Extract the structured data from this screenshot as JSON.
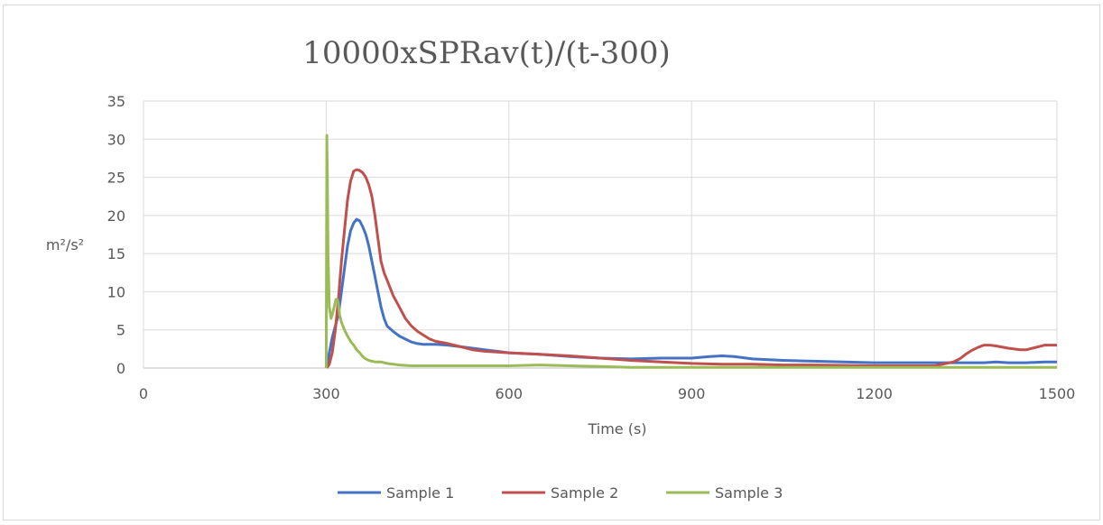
{
  "chart_data": {
    "type": "line",
    "title": "10000xSPRav(t)/(t-300)",
    "xlabel": "Time (s)",
    "ylabel": "m²/s²",
    "xlim": [
      0,
      1500
    ],
    "ylim": [
      0,
      35
    ],
    "xticks": [
      0,
      300,
      600,
      900,
      1200,
      1500
    ],
    "yticks": [
      0,
      5,
      10,
      15,
      20,
      25,
      30,
      35
    ],
    "grid": true,
    "legend": "bottom",
    "series": [
      {
        "name": "Sample 1",
        "color": "#4472c4",
        "x": [
          301,
          305,
          310,
          315,
          320,
          325,
          330,
          335,
          340,
          345,
          350,
          355,
          360,
          365,
          370,
          375,
          380,
          385,
          390,
          395,
          400,
          410,
          420,
          430,
          440,
          450,
          460,
          470,
          480,
          500,
          520,
          540,
          560,
          580,
          600,
          650,
          700,
          750,
          800,
          850,
          900,
          930,
          950,
          970,
          1000,
          1050,
          1100,
          1150,
          1200,
          1250,
          1300,
          1350,
          1380,
          1400,
          1420,
          1450,
          1480,
          1500
        ],
        "y": [
          0,
          2,
          4,
          5.5,
          7,
          10,
          13,
          16,
          18,
          19,
          19.5,
          19.3,
          18.5,
          17.5,
          16,
          14,
          12,
          10,
          8,
          6.5,
          5.5,
          4.8,
          4.2,
          3.8,
          3.4,
          3.2,
          3.1,
          3.1,
          3.1,
          3.0,
          2.8,
          2.6,
          2.4,
          2.2,
          2.0,
          1.8,
          1.5,
          1.3,
          1.2,
          1.3,
          1.3,
          1.5,
          1.6,
          1.5,
          1.2,
          1.0,
          0.9,
          0.8,
          0.7,
          0.7,
          0.7,
          0.7,
          0.7,
          0.8,
          0.7,
          0.7,
          0.8,
          0.8
        ]
      },
      {
        "name": "Sample 2",
        "color": "#c0504d",
        "x": [
          301,
          305,
          310,
          315,
          320,
          325,
          330,
          335,
          340,
          345,
          350,
          355,
          360,
          365,
          370,
          375,
          380,
          385,
          390,
          395,
          400,
          410,
          420,
          430,
          440,
          450,
          460,
          470,
          480,
          500,
          520,
          540,
          560,
          580,
          600,
          650,
          700,
          750,
          800,
          850,
          900,
          950,
          1000,
          1050,
          1100,
          1200,
          1300,
          1330,
          1340,
          1350,
          1360,
          1370,
          1380,
          1390,
          1400,
          1420,
          1440,
          1450,
          1460,
          1470,
          1480,
          1500
        ],
        "y": [
          0,
          0.5,
          2,
          5,
          9,
          14,
          18,
          22,
          24.5,
          25.8,
          26,
          25.9,
          25.6,
          25,
          24,
          22.5,
          20,
          17,
          14,
          12.5,
          11.5,
          9.5,
          8,
          6.5,
          5.5,
          4.8,
          4.3,
          3.8,
          3.5,
          3.2,
          2.8,
          2.4,
          2.2,
          2.1,
          2.0,
          1.8,
          1.6,
          1.3,
          1.0,
          0.8,
          0.6,
          0.5,
          0.5,
          0.4,
          0.4,
          0.3,
          0.3,
          0.8,
          1.2,
          1.8,
          2.3,
          2.7,
          3.0,
          3.0,
          2.9,
          2.6,
          2.4,
          2.4,
          2.6,
          2.8,
          3.0,
          3.0
        ]
      },
      {
        "name": "Sample 3",
        "color": "#9bbb59",
        "x": [
          300,
          301,
          302,
          303,
          305,
          308,
          310,
          313,
          316,
          318,
          320,
          322,
          325,
          330,
          335,
          340,
          345,
          350,
          355,
          360,
          365,
          370,
          380,
          390,
          400,
          420,
          440,
          460,
          500,
          550,
          600,
          650,
          700,
          750,
          800,
          850,
          900,
          1000,
          1100,
          1200,
          1300,
          1400,
          1500
        ],
        "y": [
          0,
          30.5,
          25,
          15,
          8,
          6.5,
          7,
          8,
          9,
          9,
          8.5,
          7,
          6,
          5,
          4.2,
          3.5,
          3,
          2.4,
          2,
          1.5,
          1.2,
          1,
          0.8,
          0.8,
          0.6,
          0.4,
          0.3,
          0.3,
          0.3,
          0.3,
          0.3,
          0.4,
          0.3,
          0.2,
          0.1,
          0.1,
          0.1,
          0.1,
          0.1,
          0.1,
          0.1,
          0.1,
          0.1
        ]
      }
    ]
  }
}
